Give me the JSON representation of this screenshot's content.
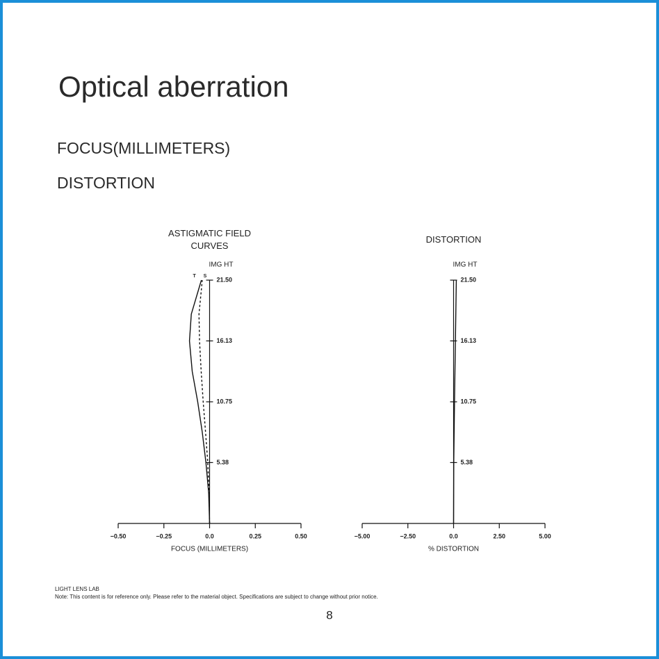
{
  "page": {
    "title": "Optical aberration",
    "headings": [
      "FOCUS(MILLIMETERS)",
      "DISTORTION"
    ],
    "footer": {
      "brand": "LIGHT LENS LAB",
      "note": "Note: This content is for reference only. Please refer to the material object. Specifications are subject to change without prior notice."
    },
    "page_number": "8"
  },
  "chart_data": [
    {
      "type": "line",
      "title": "ASTIGMATIC FIELD CURVES",
      "y_label": "IMG HT",
      "x_label": "FOCUS (MILLIMETERS)",
      "img_ht": [
        0,
        2.69,
        5.38,
        8.06,
        10.75,
        13.44,
        16.13,
        18.5,
        21.5
      ],
      "series": [
        {
          "name": "T",
          "color": "#111111",
          "style": "solid",
          "values": [
            0,
            -0.005,
            -0.02,
            -0.04,
            -0.065,
            -0.095,
            -0.11,
            -0.1,
            -0.045
          ]
        },
        {
          "name": "S",
          "color": "#111111",
          "style": "dashed",
          "values": [
            0,
            -0.003,
            -0.01,
            -0.022,
            -0.035,
            -0.046,
            -0.055,
            -0.058,
            -0.04
          ]
        }
      ],
      "xlim": [
        -0.5,
        0.5
      ],
      "xticks": [
        {
          "value": -0.5,
          "label": "−0.50"
        },
        {
          "value": -0.25,
          "label": "−0.25"
        },
        {
          "value": 0,
          "label": "0.0"
        },
        0.25,
        {
          "value": 0.5,
          "label": "0.50"
        }
      ],
      "ylim": [
        0,
        21.5
      ],
      "yticks": [
        5.38,
        10.75,
        16.13,
        {
          "value": 21.5,
          "label": "21.50"
        }
      ]
    },
    {
      "type": "line",
      "title": "DISTORTION",
      "y_label": "IMG HT",
      "x_label": "%  DISTORTION",
      "img_ht": [
        0,
        5.38,
        10.75,
        16.13,
        21.5
      ],
      "series": [
        {
          "color": "#111111",
          "style": "solid",
          "values": [
            0,
            0.01,
            0.05,
            0.1,
            0.15
          ]
        }
      ],
      "xlim": [
        -5,
        5
      ],
      "xticks": [
        {
          "value": -5,
          "label": "−5.00"
        },
        {
          "value": -2.5,
          "label": "−2.50"
        },
        {
          "value": 0,
          "label": "0.0"
        },
        {
          "value": 2.5,
          "label": "2.50"
        },
        {
          "value": 5,
          "label": "5.00"
        }
      ],
      "ylim": [
        0,
        21.5
      ],
      "yticks": [
        5.38,
        10.75,
        16.13,
        {
          "value": 21.5,
          "label": "21.50"
        }
      ]
    }
  ]
}
